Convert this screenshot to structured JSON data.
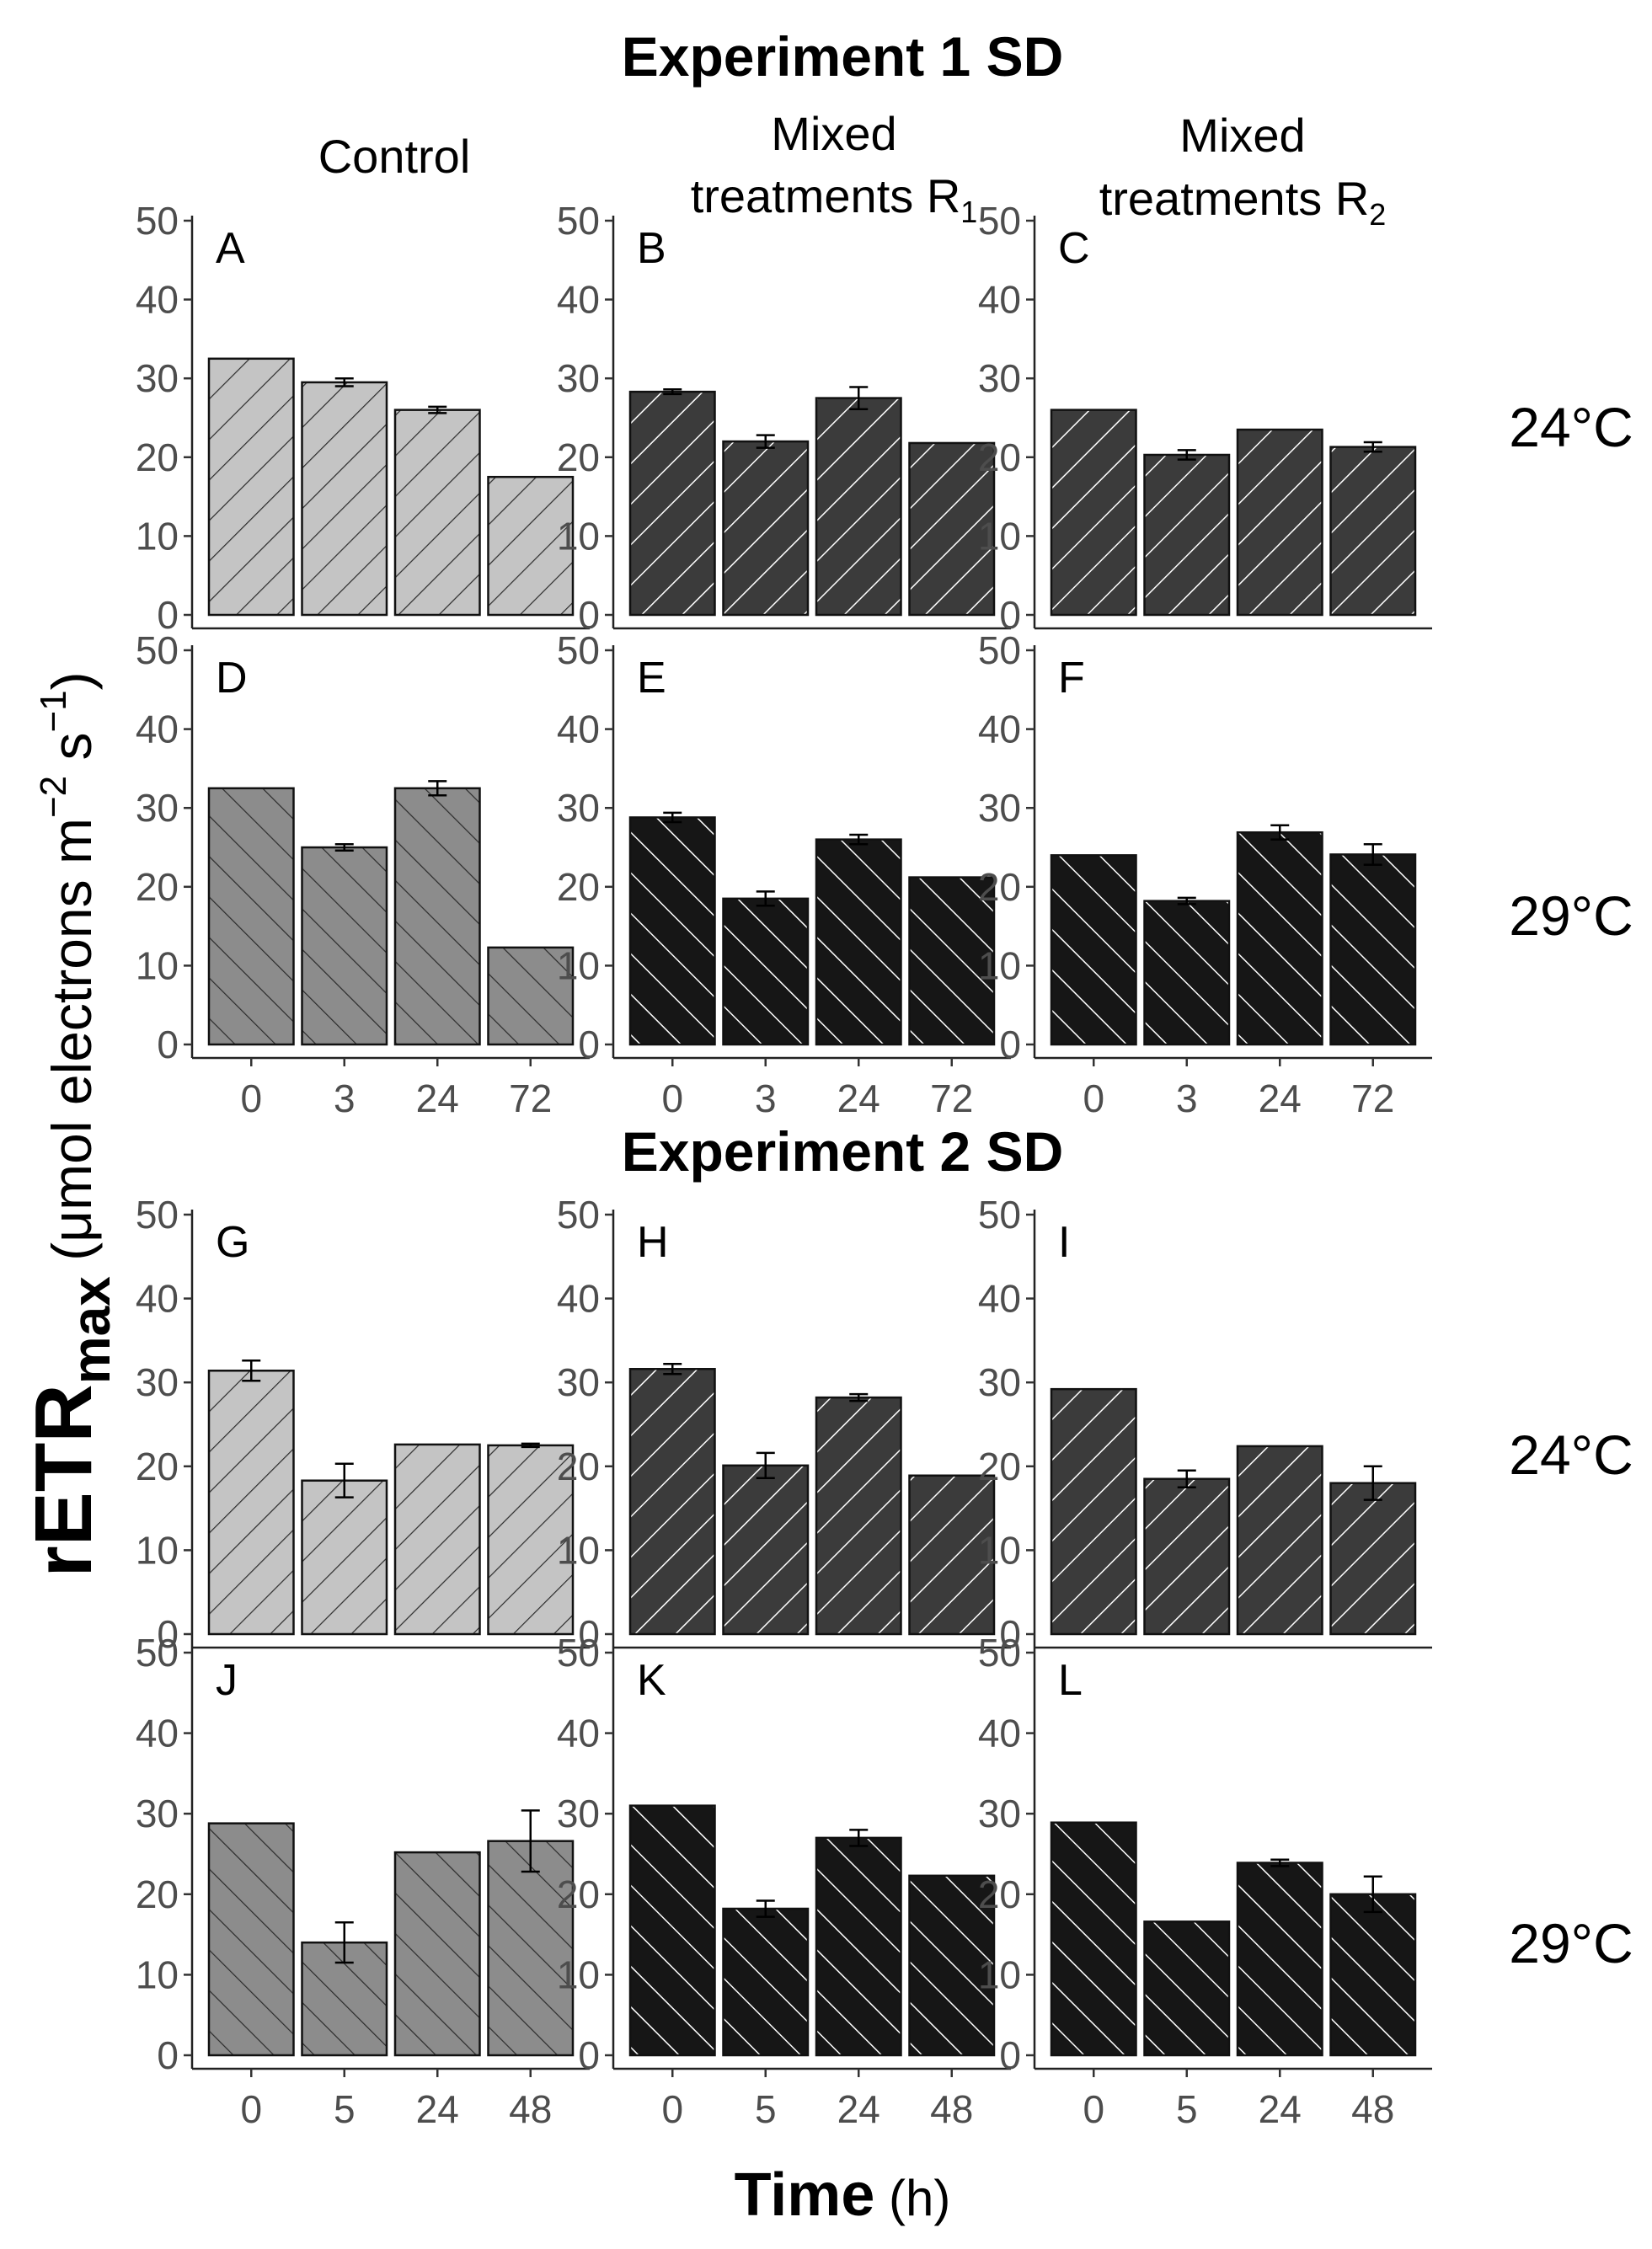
{
  "figure": {
    "ylabel_main": "rETR",
    "ylabel_sub": "max",
    "ylabel_unit_a": " (μmol electrons m",
    "ylabel_sup1": "−2",
    "ylabel_unit_b": " s",
    "ylabel_sup2": "−1",
    "ylabel_unit_c": ")",
    "xlabel_bold": "Time",
    "xlabel_rest": " (h)"
  },
  "column_headers": [
    {
      "line1": "Control",
      "line2": "",
      "sub": ""
    },
    {
      "line1": "Mixed",
      "line2": "treatments R",
      "sub": "1"
    },
    {
      "line1": "Mixed",
      "line2": "treatments R",
      "sub": "2"
    }
  ],
  "colors": {
    "control_24": "#c4c4c4",
    "control_29": "#8c8c8c",
    "mixed_24": "#3b3b3b",
    "mixed_29": "#161616",
    "hatch_dark": "#2b2b2b",
    "hatch_light": "#ffffff"
  },
  "chart_data": [
    {
      "title": "Experiment 1 SD",
      "type": "bar",
      "categories": [
        "0",
        "3",
        "24",
        "72"
      ],
      "ylim": [
        0,
        50
      ],
      "yticks": [
        0,
        10,
        20,
        30,
        40,
        50
      ],
      "rows": [
        {
          "temperature": "24°C",
          "panels": [
            {
              "label": "A",
              "values": [
                32.5,
                29.5,
                26,
                17.5
              ],
              "errors": [
                0,
                0.5,
                0.4,
                0
              ]
            },
            {
              "label": "B",
              "values": [
                28.3,
                22,
                27.5,
                21.8
              ],
              "errors": [
                0.3,
                0.8,
                1.4,
                0
              ]
            },
            {
              "label": "C",
              "values": [
                26,
                20.3,
                23.5,
                21.3
              ],
              "errors": [
                0,
                0.6,
                0,
                0.6
              ]
            }
          ]
        },
        {
          "temperature": "29°C",
          "panels": [
            {
              "label": "D",
              "values": [
                32.5,
                25,
                32.5,
                12.3
              ],
              "errors": [
                0,
                0.4,
                0.9,
                0
              ]
            },
            {
              "label": "E",
              "values": [
                28.8,
                18.5,
                26,
                21.2
              ],
              "errors": [
                0.6,
                0.9,
                0.6,
                0
              ]
            },
            {
              "label": "F",
              "values": [
                24,
                18.2,
                26.9,
                24.1
              ],
              "errors": [
                0,
                0.4,
                0.9,
                1.3
              ]
            }
          ]
        }
      ]
    },
    {
      "title": "Experiment 2 SD",
      "type": "bar",
      "categories": [
        "0",
        "5",
        "24",
        "48"
      ],
      "ylim": [
        0,
        50
      ],
      "yticks": [
        0,
        10,
        20,
        30,
        40,
        50
      ],
      "rows": [
        {
          "temperature": "24°C",
          "panels": [
            {
              "label": "G",
              "values": [
                31.4,
                18.3,
                22.6,
                22.5
              ],
              "errors": [
                1.2,
                2.0,
                0,
                0.2
              ]
            },
            {
              "label": "H",
              "values": [
                31.6,
                20.1,
                28.2,
                18.9
              ],
              "errors": [
                0.6,
                1.5,
                0.4,
                0
              ]
            },
            {
              "label": "I",
              "values": [
                29.2,
                18.5,
                22.4,
                18
              ],
              "errors": [
                0,
                1.0,
                0,
                2.0
              ]
            }
          ]
        },
        {
          "temperature": "29°C",
          "panels": [
            {
              "label": "J",
              "values": [
                28.8,
                14,
                25.2,
                26.6
              ],
              "errors": [
                0,
                2.5,
                0,
                3.8
              ]
            },
            {
              "label": "K",
              "values": [
                31,
                18.2,
                27,
                22.3
              ],
              "errors": [
                0,
                1.0,
                1.0,
                0
              ]
            },
            {
              "label": "L",
              "values": [
                28.9,
                16.6,
                23.9,
                20
              ],
              "errors": [
                0,
                0,
                0.4,
                2.2
              ]
            }
          ]
        }
      ]
    }
  ]
}
